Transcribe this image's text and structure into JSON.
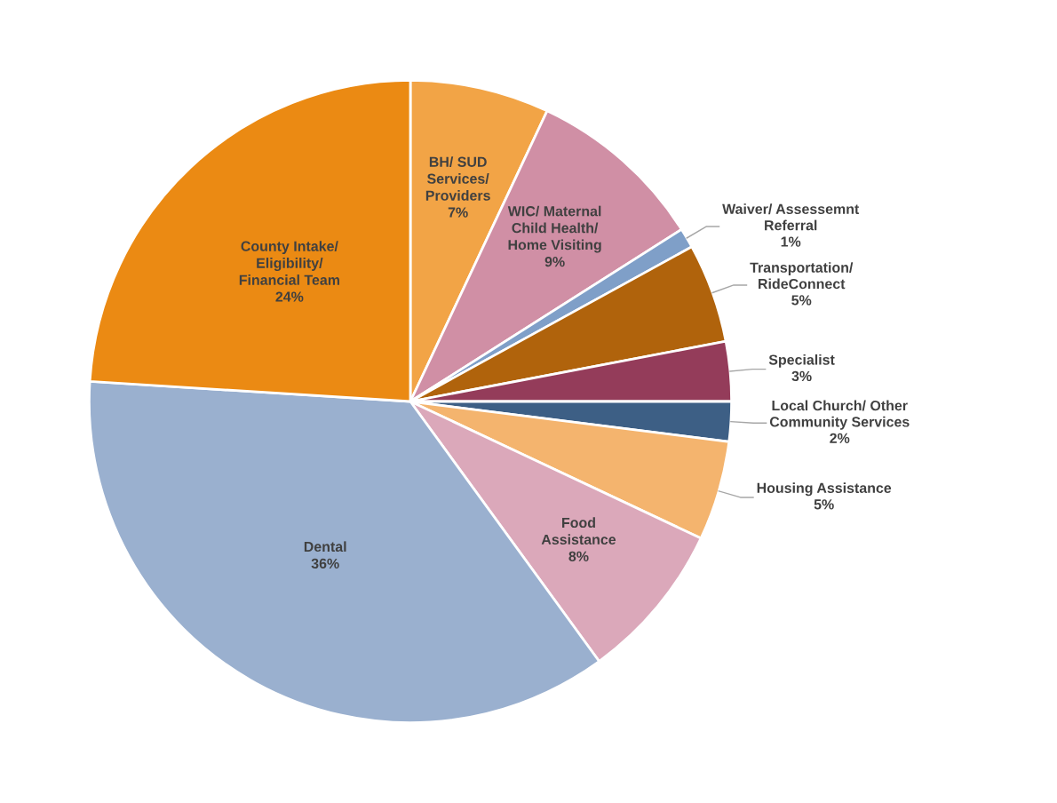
{
  "chart_data": {
    "type": "pie",
    "categories": [
      "BH/ SUD Services/ Providers",
      "WIC/ Maternal Child Health/ Home Visiting",
      "Waiver/ Assessemnt Referral",
      "Transportation/ RideConnect",
      "Specialist",
      "Local Church/ Other Community Services",
      "Housing Assistance",
      "Food Assistance",
      "Dental",
      "County Intake/ Eligibility/ Financial Team"
    ],
    "values": [
      7,
      9,
      1,
      5,
      3,
      2,
      5,
      8,
      36,
      24
    ],
    "colors": [
      "#f2a446",
      "#d08fa5",
      "#7f9fc8",
      "#b0630c",
      "#943c5a",
      "#3d5f85",
      "#f4b46e",
      "#dba8ba",
      "#9ab0cf",
      "#eb8a13"
    ],
    "value_labels": [
      "7%",
      "9%",
      "1%",
      "5%",
      "3%",
      "2%",
      "5%",
      "8%",
      "36%",
      "24%"
    ]
  }
}
